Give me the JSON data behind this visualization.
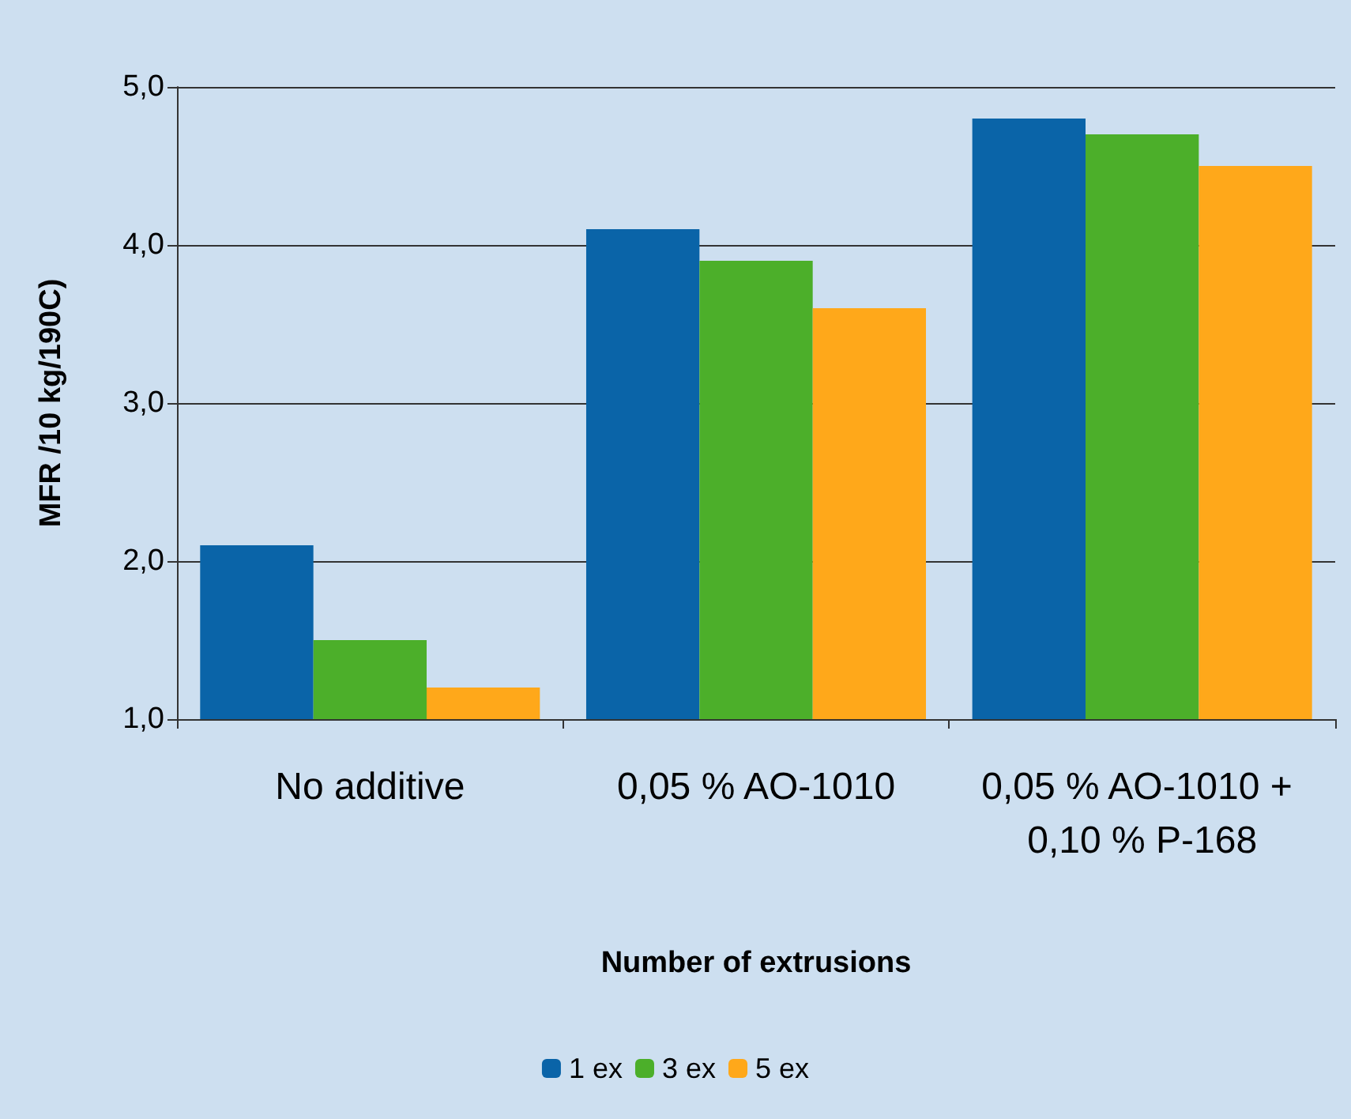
{
  "chart_data": {
    "type": "bar",
    "xlabel": "Number of extrusions",
    "ylabel": "MFR /10 kg/190C)",
    "categories": [
      "No additive",
      "0,05 % AO-1010",
      "0,05 % AO-1010 + 0,10 % P-168"
    ],
    "series": [
      {
        "name": "1 ex",
        "color": "#0a64a8",
        "values": [
          2.1,
          4.1,
          4.8
        ]
      },
      {
        "name": "3 ex",
        "color": "#4caf2a",
        "values": [
          1.5,
          3.9,
          4.7
        ]
      },
      {
        "name": "5 ex",
        "color": "#ffa81a",
        "values": [
          1.2,
          3.6,
          4.5
        ]
      }
    ],
    "ylim": [
      1,
      5
    ],
    "yticks": [
      {
        "value": 1,
        "label": "1,0"
      },
      {
        "value": 2,
        "label": "2,0"
      },
      {
        "value": 3,
        "label": "3,0"
      },
      {
        "value": 4,
        "label": "4,0"
      },
      {
        "value": 5,
        "label": "5,0"
      }
    ],
    "grid": "y",
    "legend": "bottom"
  }
}
